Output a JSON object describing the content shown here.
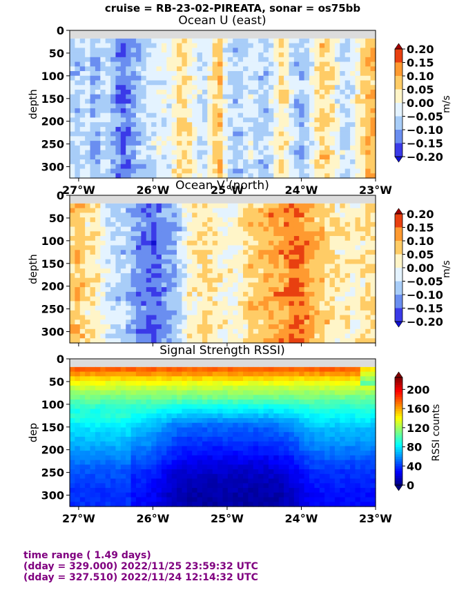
{
  "suptitle": "cruise = RB-23-02-PIREATA,  sonar = os75bb",
  "footer": {
    "line1": "time range ( 1.49 days)",
    "line2": "(dday = 329.000) 2022/11/25 23:59:32 UTC",
    "line3": "(dday = 327.510) 2022/11/24 12:14:32 UTC"
  },
  "colors": {
    "footer": "#800080",
    "nodata": "#dcdcdc"
  },
  "chart_data": [
    {
      "type": "heatmap",
      "title": "Ocean U (east)",
      "ylabel": "depth",
      "xlabel": "",
      "x_ticks": [
        -27,
        -26,
        -25,
        -24,
        -23
      ],
      "x_tick_labels": [
        "27°W",
        "26°W",
        "25°W",
        "24°W",
        "23°W"
      ],
      "xlim": [
        -27.12,
        -23.0
      ],
      "y_ticks": [
        0,
        50,
        100,
        150,
        200,
        250,
        300
      ],
      "ylim": [
        325,
        0
      ],
      "colorbar": {
        "label": "m/s",
        "ticks": [
          0.2,
          0.15,
          0.1,
          0.05,
          0.0,
          -0.05,
          -0.1,
          -0.15,
          -0.2
        ],
        "tick_labels": [
          "0.20",
          "0.15",
          "0.10",
          "0.05",
          "0.00",
          "−0.05",
          "−0.10",
          "−0.15",
          "−0.20"
        ],
        "range": [
          -0.2,
          0.2
        ]
      },
      "depth_profile_note": "",
      "columns": [
        {
          "lon": -27.1,
          "u": -0.06
        },
        {
          "lon": -27.0,
          "u": -0.08
        },
        {
          "lon": -26.9,
          "u": -0.03
        },
        {
          "lon": -26.8,
          "u": -0.1
        },
        {
          "lon": -26.7,
          "u": -0.07
        },
        {
          "lon": -26.6,
          "u": -0.05
        },
        {
          "lon": -26.5,
          "u": -0.11
        },
        {
          "lon": -26.4,
          "u": -0.14
        },
        {
          "lon": -26.3,
          "u": -0.12
        },
        {
          "lon": -26.2,
          "u": -0.08
        },
        {
          "lon": -26.1,
          "u": -0.06
        },
        {
          "lon": -26.0,
          "u": -0.04
        },
        {
          "lon": -25.9,
          "u": -0.02
        },
        {
          "lon": -25.8,
          "u": -0.03
        },
        {
          "lon": -25.7,
          "u": 0.02
        },
        {
          "lon": -25.6,
          "u": 0.06
        },
        {
          "lon": -25.5,
          "u": 0.02
        },
        {
          "lon": -25.4,
          "u": -0.03
        },
        {
          "lon": -25.3,
          "u": -0.05
        },
        {
          "lon": -25.2,
          "u": 0.04
        },
        {
          "lon": -25.1,
          "u": 0.08
        },
        {
          "lon": -25.0,
          "u": -0.04
        },
        {
          "lon": -24.9,
          "u": -0.07
        },
        {
          "lon": -24.8,
          "u": -0.06
        },
        {
          "lon": -24.7,
          "u": -0.02
        },
        {
          "lon": -24.6,
          "u": -0.05
        },
        {
          "lon": -24.5,
          "u": -0.08
        },
        {
          "lon": -24.4,
          "u": -0.04
        },
        {
          "lon": -24.3,
          "u": 0.05
        },
        {
          "lon": -24.2,
          "u": 0.02
        },
        {
          "lon": -24.1,
          "u": -0.06
        },
        {
          "lon": -24.0,
          "u": -0.09
        },
        {
          "lon": -23.9,
          "u": -0.05
        },
        {
          "lon": -23.8,
          "u": 0.03
        },
        {
          "lon": -23.7,
          "u": 0.07
        },
        {
          "lon": -23.6,
          "u": 0.04
        },
        {
          "lon": -23.5,
          "u": -0.03
        },
        {
          "lon": -23.4,
          "u": -0.06
        },
        {
          "lon": -23.3,
          "u": -0.02
        },
        {
          "lon": -23.2,
          "u": 0.05
        },
        {
          "lon": -23.1,
          "u": 0.09
        }
      ]
    },
    {
      "type": "heatmap",
      "title": "Ocean V (north)",
      "ylabel": "depth",
      "xlabel": "",
      "x_ticks": [
        -27,
        -26,
        -25,
        -24,
        -23
      ],
      "x_tick_labels": [
        "",
        "",
        "",
        "",
        ""
      ],
      "xlim": [
        -27.12,
        -23.0
      ],
      "y_ticks": [
        0,
        50,
        100,
        150,
        200,
        250,
        300
      ],
      "ylim": [
        325,
        0
      ],
      "colorbar": {
        "label": "m/s",
        "ticks": [
          0.2,
          0.15,
          0.1,
          0.05,
          0.0,
          -0.05,
          -0.1,
          -0.15,
          -0.2
        ],
        "tick_labels": [
          "0.20",
          "0.15",
          "0.10",
          "0.05",
          "0.00",
          "−0.05",
          "−0.10",
          "−0.15",
          "−0.20"
        ],
        "range": [
          -0.2,
          0.2
        ]
      },
      "columns": [
        {
          "lon": -27.1,
          "v": 0.06
        },
        {
          "lon": -27.0,
          "v": 0.08
        },
        {
          "lon": -26.9,
          "v": 0.04
        },
        {
          "lon": -26.8,
          "v": 0.05
        },
        {
          "lon": -26.7,
          "v": 0.01
        },
        {
          "lon": -26.6,
          "v": -0.03
        },
        {
          "lon": -26.5,
          "v": -0.06
        },
        {
          "lon": -26.4,
          "v": -0.05
        },
        {
          "lon": -26.3,
          "v": -0.08
        },
        {
          "lon": -26.2,
          "v": -0.12
        },
        {
          "lon": -26.1,
          "v": -0.14
        },
        {
          "lon": -26.0,
          "v": -0.16
        },
        {
          "lon": -25.9,
          "v": -0.13
        },
        {
          "lon": -25.8,
          "v": -0.11
        },
        {
          "lon": -25.7,
          "v": -0.09
        },
        {
          "lon": -25.6,
          "v": -0.04
        },
        {
          "lon": -25.5,
          "v": 0.02
        },
        {
          "lon": -25.4,
          "v": 0.03
        },
        {
          "lon": -25.3,
          "v": 0.05
        },
        {
          "lon": -25.2,
          "v": 0.04
        },
        {
          "lon": -25.1,
          "v": 0.02
        },
        {
          "lon": -25.0,
          "v": 0.01
        },
        {
          "lon": -24.9,
          "v": 0.0
        },
        {
          "lon": -24.8,
          "v": 0.03
        },
        {
          "lon": -24.7,
          "v": 0.06
        },
        {
          "lon": -24.6,
          "v": 0.07
        },
        {
          "lon": -24.5,
          "v": 0.09
        },
        {
          "lon": -24.4,
          "v": 0.11
        },
        {
          "lon": -24.3,
          "v": 0.1
        },
        {
          "lon": -24.2,
          "v": 0.13
        },
        {
          "lon": -24.1,
          "v": 0.16
        },
        {
          "lon": -24.0,
          "v": 0.14
        },
        {
          "lon": -23.9,
          "v": 0.11
        },
        {
          "lon": -23.8,
          "v": 0.08
        },
        {
          "lon": -23.7,
          "v": 0.07
        },
        {
          "lon": -23.6,
          "v": 0.05
        },
        {
          "lon": -23.5,
          "v": 0.03
        },
        {
          "lon": -23.4,
          "v": 0.04
        },
        {
          "lon": -23.3,
          "v": 0.02
        },
        {
          "lon": -23.2,
          "v": 0.03
        },
        {
          "lon": -23.1,
          "v": 0.05
        }
      ]
    },
    {
      "type": "heatmap",
      "title": "Signal Strength RSSI)",
      "ylabel": "dep",
      "xlabel": "",
      "x_ticks": [
        -27,
        -26,
        -25,
        -24,
        -23
      ],
      "x_tick_labels": [
        "27°W",
        "26°W",
        "25°W",
        "24°W",
        "23°W"
      ],
      "xlim": [
        -27.12,
        -23.0
      ],
      "y_ticks": [
        0,
        50,
        100,
        150,
        200,
        250,
        300
      ],
      "ylim": [
        325,
        0
      ],
      "colorbar": {
        "label": "RSSI counts",
        "ticks": [
          200,
          160,
          120,
          80,
          40,
          0
        ],
        "tick_labels": [
          "200",
          "160",
          "120",
          "80",
          "40",
          "0"
        ],
        "range": [
          0,
          225
        ]
      },
      "depth_profile": [
        {
          "depth": 25,
          "rssi": 175
        },
        {
          "depth": 50,
          "rssi": 140
        },
        {
          "depth": 75,
          "rssi": 118
        },
        {
          "depth": 100,
          "rssi": 98
        },
        {
          "depth": 150,
          "rssi": 72
        },
        {
          "depth": 200,
          "rssi": 55
        },
        {
          "depth": 250,
          "rssi": 38
        },
        {
          "depth": 300,
          "rssi": 30
        }
      ]
    }
  ]
}
